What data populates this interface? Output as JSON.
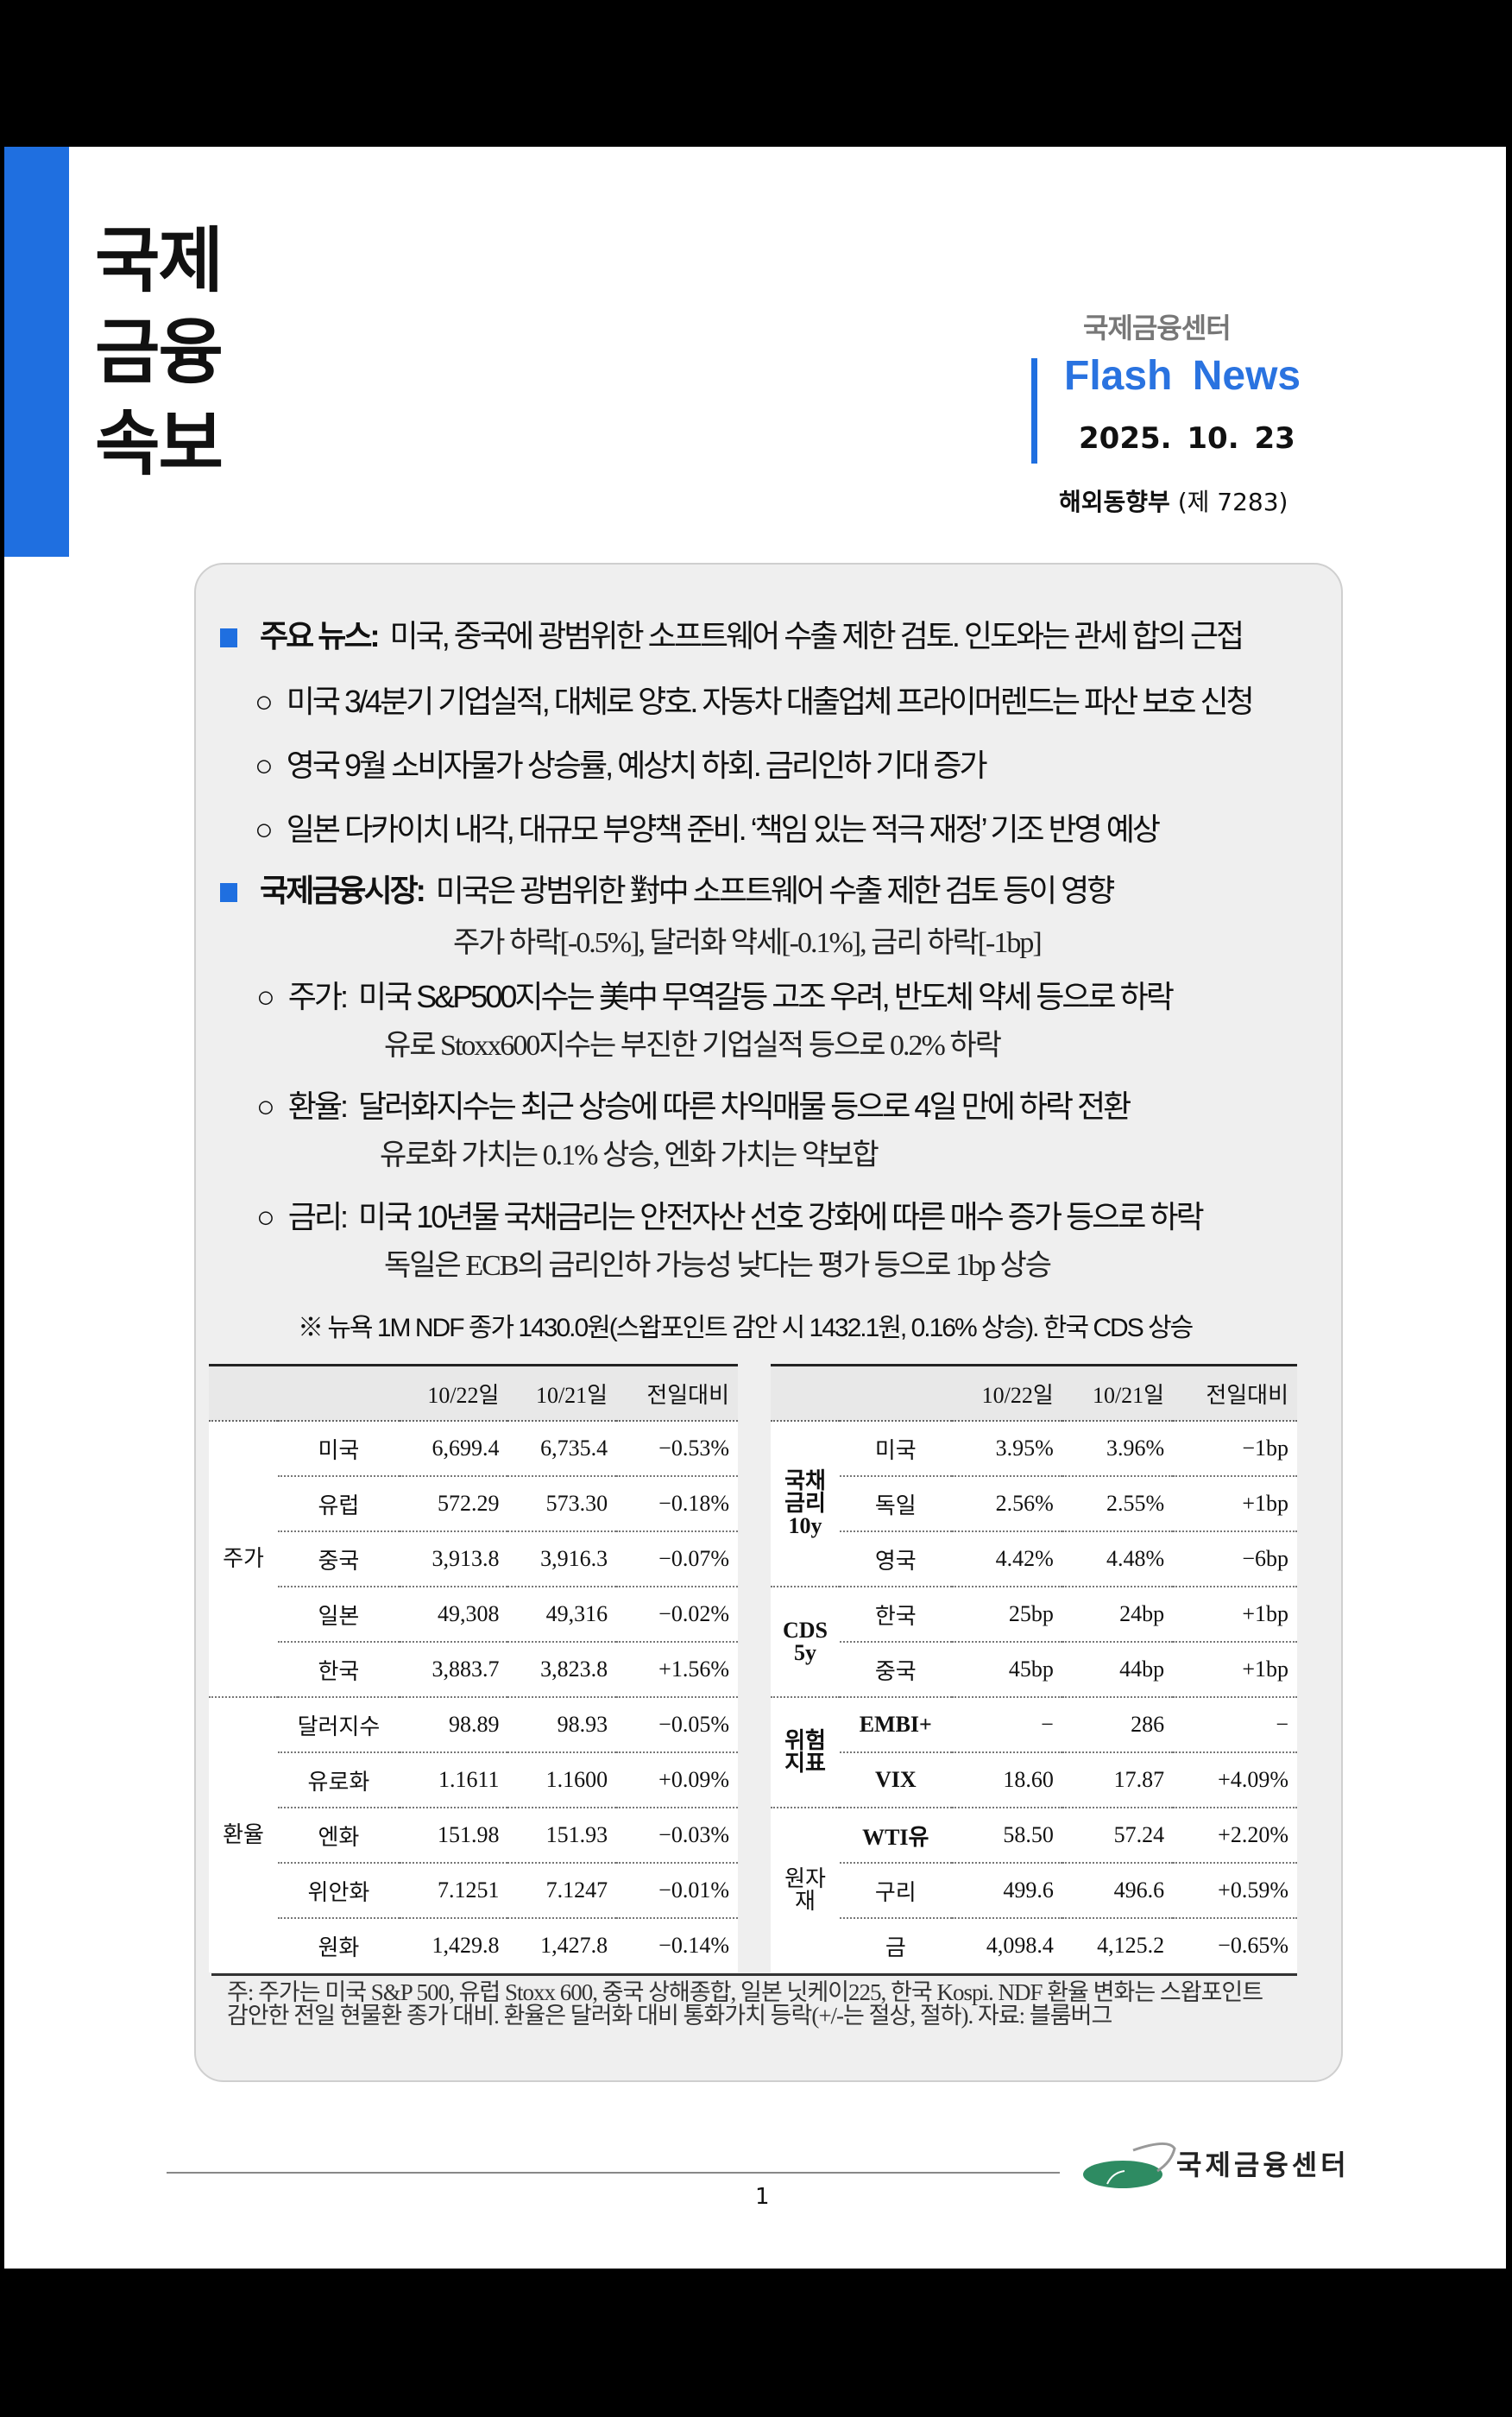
{
  "header": {
    "big_title": [
      "국제",
      "금융",
      "속보"
    ],
    "org": "국제금융센터",
    "product": "Flash  News",
    "date": "2025. 10. 23",
    "dept": "해외동향부",
    "issue": "(제  7283)",
    "accent_color": "#1f6fe0"
  },
  "summary": {
    "headline_label": "주요 뉴스:",
    "headline": "미국, 중국에 광범위한 소프트웨어 수출 제한 검토. 인도와는 관세 합의 근접",
    "news": [
      "미국 3/4분기 기업실적, 대체로 양호. 자동차 대출업체 프라이머렌드는 파산 보호 신청",
      "영국 9월 소비자물가 상승률, 예상치 하회. 금리인하 기대 증가",
      "일본 다카이치 내각, 대규모 부양책 준비. ‘책임 있는 적극 재정’ 기조 반영 예상"
    ],
    "market_label": "국제금융시장:",
    "market_headline": "미국은 광범위한 對中 소프트웨어 수출 제한 검토 등이 영향",
    "market_sub": "주가 하락[-0.5%], 달러화 약세[-0.1%], 금리 하락[-1bp]",
    "items": [
      {
        "label": "주가:",
        "text": "미국 S&P500지수는 美中 무역갈등 고조 우려, 반도체 약세 등으로 하락",
        "sub": "유로 Stoxx600지수는 부진한 기업실적 등으로 0.2% 하락"
      },
      {
        "label": "환율:",
        "text": "달러화지수는 최근 상승에 따른 차익매물 등으로 4일 만에 하락 전환",
        "sub": "유로화 가치는 0.1% 상승, 엔화 가치는 약보합"
      },
      {
        "label": "금리:",
        "text": "미국 10년물 국채금리는 안전자산 선호 강화에 따른 매수 증가 등으로 하락",
        "sub": "독일은 ECB의 금리인하 가능성 낮다는 평가 등으로 1bp 상승"
      }
    ],
    "note": "※ 뉴욕 1M NDF 종가 1430.0원(스왑포인트 감안 시 1432.1원, 0.16% 상승). 한국 CDS 상승"
  },
  "left_table": {
    "columns": [
      "",
      "",
      "10/22일",
      "10/21일",
      "전일대비"
    ],
    "groups": [
      {
        "name": "주가",
        "rows": [
          [
            "미국",
            "6,699.4",
            "6,735.4",
            "−0.53%"
          ],
          [
            "유럽",
            "572.29",
            "573.30",
            "−0.18%"
          ],
          [
            "중국",
            "3,913.8",
            "3,916.3",
            "−0.07%"
          ],
          [
            "일본",
            "49,308",
            "49,316",
            "−0.02%"
          ],
          [
            "한국",
            "3,883.7",
            "3,823.8",
            "+1.56%"
          ]
        ]
      },
      {
        "name": "환율",
        "rows": [
          [
            "달러지수",
            "98.89",
            "98.93",
            "−0.05%"
          ],
          [
            "유로화",
            "1.1611",
            "1.1600",
            "+0.09%"
          ],
          [
            "엔화",
            "151.98",
            "151.93",
            "−0.03%"
          ],
          [
            "위안화",
            "7.1251",
            "7.1247",
            "−0.01%"
          ],
          [
            "원화",
            "1,429.8",
            "1,427.8",
            "−0.14%"
          ]
        ]
      }
    ]
  },
  "right_table": {
    "columns": [
      "",
      "",
      "10/22일",
      "10/21일",
      "전일대비"
    ],
    "groups": [
      {
        "name": "국채\n금리\n10y",
        "rows": [
          [
            "미국",
            "3.95%",
            "3.96%",
            "−1bp"
          ],
          [
            "독일",
            "2.56%",
            "2.55%",
            "+1bp"
          ],
          [
            "영국",
            "4.42%",
            "4.48%",
            "−6bp"
          ]
        ]
      },
      {
        "name": "CDS\n5y",
        "rows": [
          [
            "한국",
            "25bp",
            "24bp",
            "+1bp"
          ],
          [
            "중국",
            "45bp",
            "44bp",
            "+1bp"
          ]
        ]
      },
      {
        "name": "위험\n지표",
        "rows": [
          [
            "EMBI+",
            "−",
            "286",
            "−"
          ],
          [
            "VIX",
            "18.60",
            "17.87",
            "+4.09%"
          ]
        ]
      },
      {
        "name": "원자재",
        "rows": [
          [
            "WTI유",
            "58.50",
            "57.24",
            "+2.20%"
          ],
          [
            "구리",
            "499.6",
            "496.6",
            "+0.59%"
          ],
          [
            "금",
            "4,098.4",
            "4,125.2",
            "−0.65%"
          ]
        ]
      }
    ]
  },
  "footnote": [
    "주: 주가는 미국 S&P 500, 유럽 Stoxx 600, 중국 상해종합, 일본 닛케이225, 한국 Kospi. NDF 환율 변화는 스왑포인트",
    "감안한 전일 현물환 종가 대비. 환율은 달러화 대비 통화가치 등락(+/-는 절상, 절하). 자료: 블룸버그"
  ],
  "footer": {
    "page": "1",
    "logo_text": "국제금융센터",
    "logo_color": "#2e8b62"
  }
}
